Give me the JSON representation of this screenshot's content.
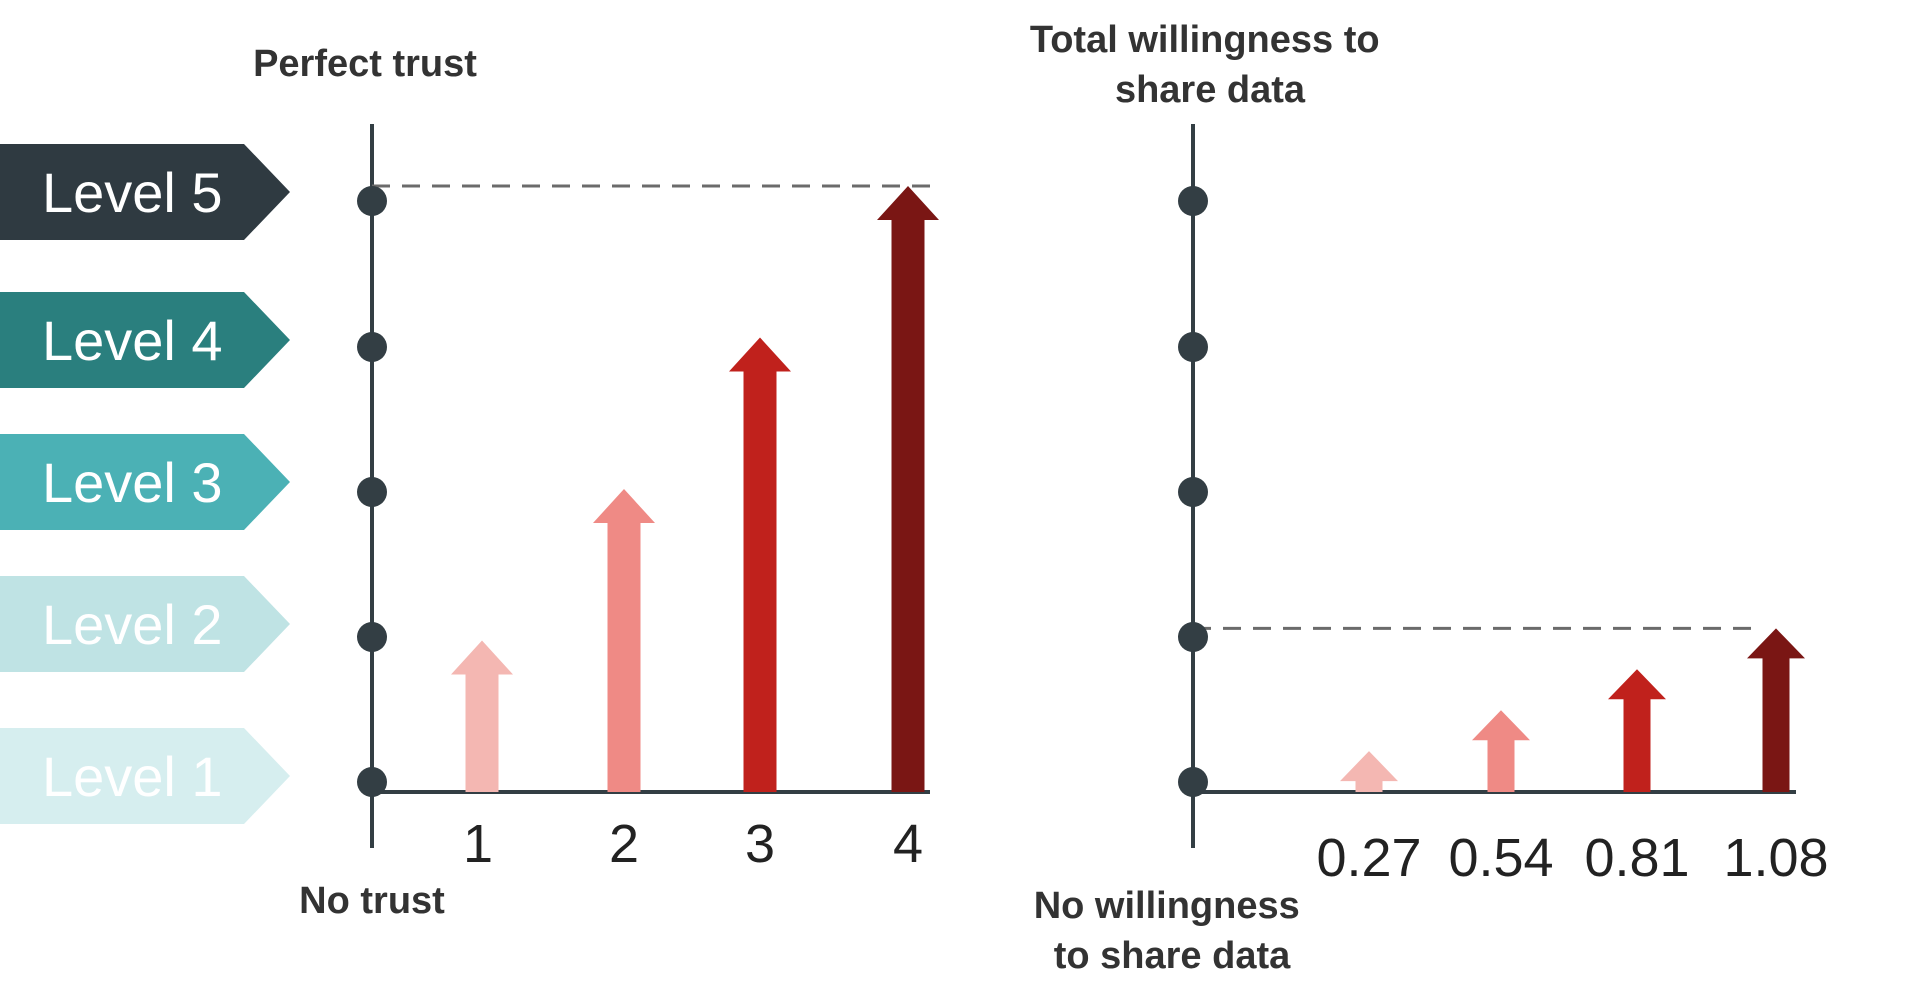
{
  "levels": [
    {
      "label": "Level 5",
      "color": "#2f3a41",
      "text_color": "#ffffff"
    },
    {
      "label": "Level 4",
      "color": "#2a7f7e",
      "text_color": "#ffffff"
    },
    {
      "label": "Level 3",
      "color": "#4bb1b5",
      "text_color": "#ffffff"
    },
    {
      "label": "Level 2",
      "color": "#bfe3e4",
      "text_color": "#ffffff"
    },
    {
      "label": "Level 1",
      "color": "#d6eeef",
      "text_color": "#ffffff"
    }
  ],
  "chart_data": [
    {
      "type": "bar",
      "style": "arrows",
      "top_label": "Perfect trust",
      "bottom_label": "No trust",
      "categories": [
        "1",
        "2",
        "3",
        "4"
      ],
      "values": [
        2,
        3,
        4,
        5
      ],
      "ylim": [
        1,
        5
      ],
      "reference_line": 5,
      "colors": [
        "#f4b7b2",
        "#ef8a85",
        "#c0211c",
        "#7a1614"
      ]
    },
    {
      "type": "bar",
      "style": "arrows",
      "top_label": "Total willingness to share data",
      "bottom_label": "No willingness to share data",
      "categories": [
        "0.27",
        "0.54",
        "0.81",
        "1.08"
      ],
      "values": [
        0.27,
        0.54,
        0.81,
        1.08
      ],
      "ylim": [
        0,
        4
      ],
      "reference_line": 1.08,
      "colors": [
        "#f4b7b2",
        "#ef8a85",
        "#c0211c",
        "#7a1614"
      ]
    }
  ]
}
